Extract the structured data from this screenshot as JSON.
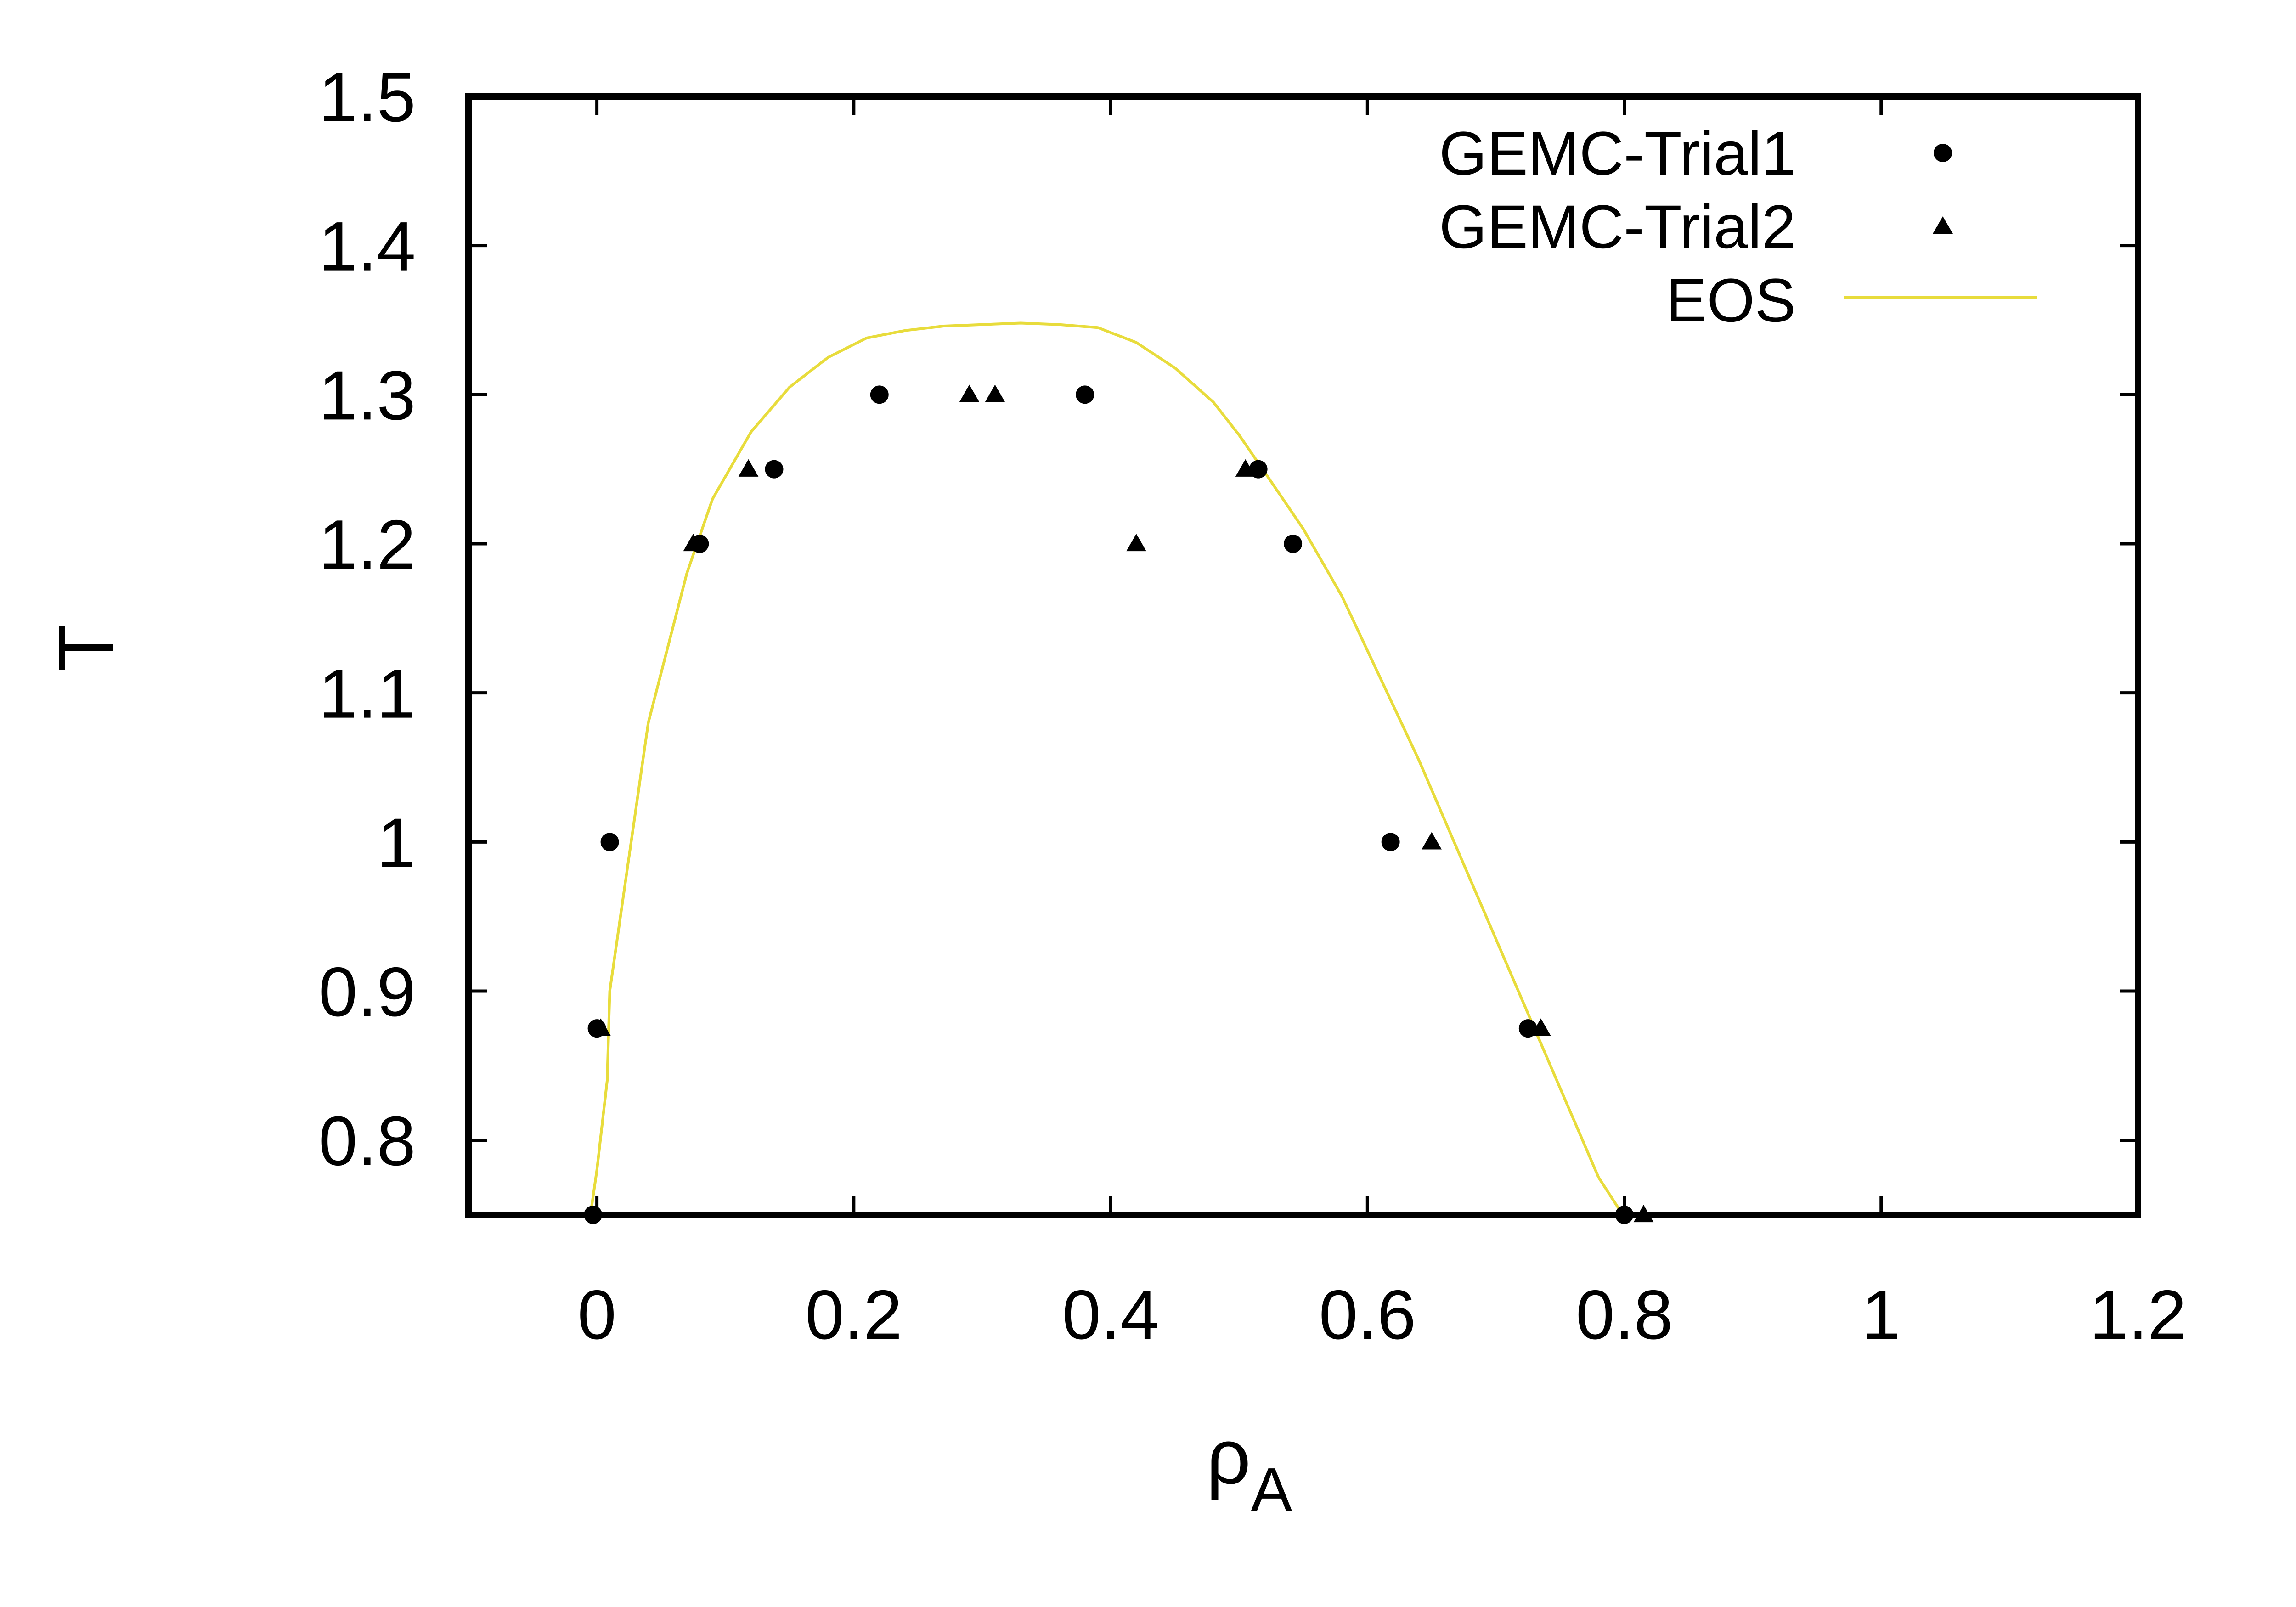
{
  "chart_data": {
    "type": "scatter",
    "title": "",
    "xlabel": "ρ",
    "xlabel_subscript": "A",
    "ylabel": "T",
    "xlim": [
      -0.1,
      1.2
    ],
    "ylim": [
      0.75,
      1.5
    ],
    "x_ticks": [
      {
        "value": 0,
        "label": "0"
      },
      {
        "value": 0.2,
        "label": "0.2"
      },
      {
        "value": 0.4,
        "label": "0.4"
      },
      {
        "value": 0.6,
        "label": "0.6"
      },
      {
        "value": 0.8,
        "label": "0.8"
      },
      {
        "value": 1.0,
        "label": "1"
      },
      {
        "value": 1.2,
        "label": "1.2"
      }
    ],
    "y_ticks": [
      {
        "value": 0.8,
        "label": "0.8"
      },
      {
        "value": 0.9,
        "label": "0.9"
      },
      {
        "value": 1.0,
        "label": "1"
      },
      {
        "value": 1.1,
        "label": "1.1"
      },
      {
        "value": 1.2,
        "label": "1.2"
      },
      {
        "value": 1.3,
        "label": "1.3"
      },
      {
        "value": 1.4,
        "label": "1.4"
      },
      {
        "value": 1.5,
        "label": "1.5"
      }
    ],
    "grid": false,
    "legend_position": "top-right",
    "series": [
      {
        "name": "GEMC-Trial1",
        "kind": "scatter",
        "marker": "circle",
        "color": "#000000",
        "x": [
          -0.003,
          0.0,
          0.01,
          0.08,
          0.138,
          0.22,
          0.38,
          0.515,
          0.542,
          0.618,
          0.725,
          0.8
        ],
        "y": [
          0.75,
          0.875,
          1.0,
          1.2,
          1.25,
          1.3,
          1.3,
          1.25,
          1.2,
          1.0,
          0.875,
          0.75
        ]
      },
      {
        "name": "GEMC-Trial2",
        "kind": "scatter",
        "marker": "triangle",
        "color": "#000000",
        "x": [
          0.003,
          0.075,
          0.118,
          0.29,
          0.31,
          0.42,
          0.505,
          0.65,
          0.735,
          0.815
        ],
        "y": [
          0.875,
          1.2,
          1.25,
          1.3,
          1.3,
          1.2,
          1.25,
          1.0,
          0.875,
          0.75
        ]
      },
      {
        "name": "EOS",
        "kind": "line",
        "color": "#e8dc3c",
        "x": [
          -0.005,
          0.0,
          0.008,
          0.01,
          0.02,
          0.03,
          0.04,
          0.055,
          0.07,
          0.09,
          0.12,
          0.15,
          0.18,
          0.21,
          0.24,
          0.27,
          0.3,
          0.33,
          0.36,
          0.39,
          0.42,
          0.45,
          0.48,
          0.5,
          0.52,
          0.55,
          0.58,
          0.61,
          0.64,
          0.67,
          0.7,
          0.73,
          0.76,
          0.78,
          0.795,
          0.81
        ],
        "y": [
          0.75,
          0.78,
          0.84,
          0.9,
          0.96,
          1.02,
          1.08,
          1.13,
          1.18,
          1.23,
          1.275,
          1.305,
          1.325,
          1.338,
          1.343,
          1.346,
          1.347,
          1.348,
          1.347,
          1.345,
          1.335,
          1.318,
          1.295,
          1.273,
          1.248,
          1.21,
          1.165,
          1.11,
          1.055,
          0.995,
          0.935,
          0.875,
          0.815,
          0.775,
          0.755,
          0.74
        ]
      }
    ]
  }
}
